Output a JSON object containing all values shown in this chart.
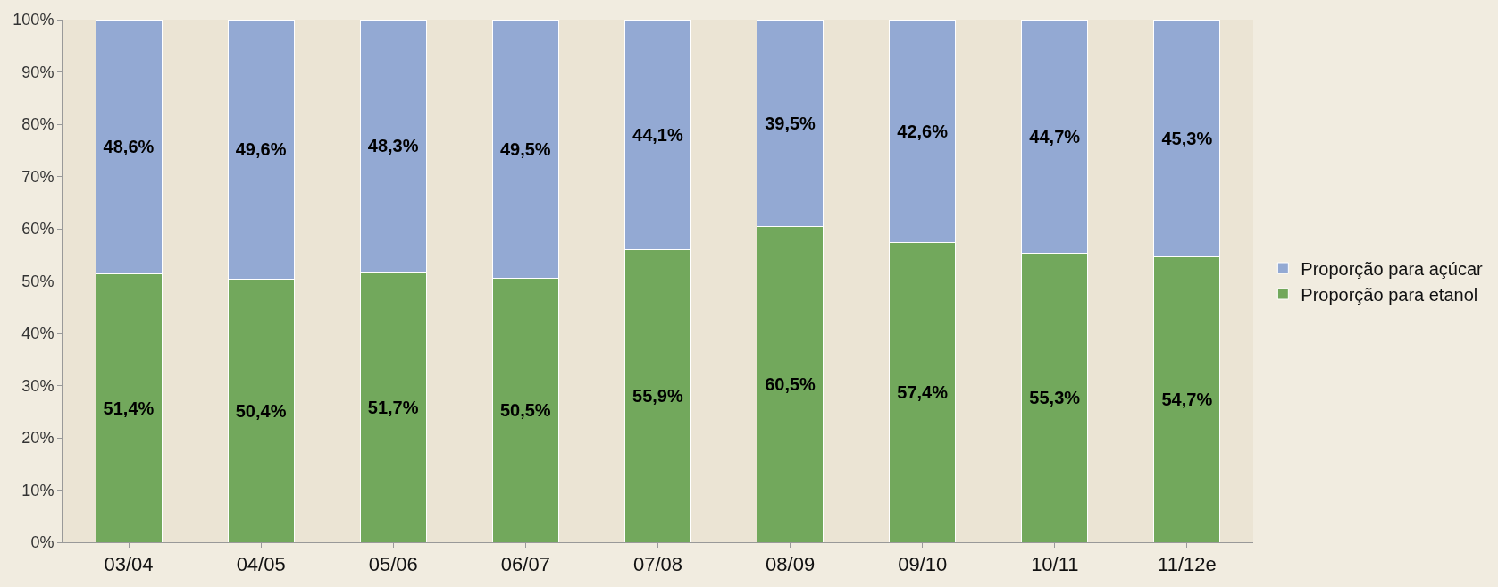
{
  "chart_data": {
    "type": "bar",
    "stacked": true,
    "categories": [
      "03/04",
      "04/05",
      "05/06",
      "06/07",
      "07/08",
      "08/09",
      "09/10",
      "10/11",
      "11/12e"
    ],
    "series": [
      {
        "name": "Proporção para etanol",
        "color": "#72a85c",
        "values": [
          51.4,
          50.4,
          51.7,
          50.5,
          55.9,
          60.5,
          57.4,
          55.3,
          54.7
        ],
        "value_labels": [
          "51,4%",
          "50,4%",
          "51,7%",
          "50,5%",
          "55,9%",
          "60,5%",
          "57,4%",
          "55,3%",
          "54,7%"
        ]
      },
      {
        "name": "Proporção para açúcar",
        "color": "#93a9d3",
        "values": [
          48.6,
          49.6,
          48.3,
          49.5,
          44.1,
          39.5,
          42.6,
          44.7,
          45.3
        ],
        "value_labels": [
          "48,6%",
          "49,6%",
          "48,3%",
          "49,5%",
          "44,1%",
          "39,5%",
          "42,6%",
          "44,7%",
          "45,3%"
        ]
      }
    ],
    "ylim": [
      0,
      100
    ],
    "yticks": [
      {
        "value": 0,
        "label": "0%"
      },
      {
        "value": 10,
        "label": "10%"
      },
      {
        "value": 20,
        "label": "20%"
      },
      {
        "value": 30,
        "label": "30%"
      },
      {
        "value": 40,
        "label": "40%"
      },
      {
        "value": 50,
        "label": "50%"
      },
      {
        "value": 60,
        "label": "60%"
      },
      {
        "value": 70,
        "label": "70%"
      },
      {
        "value": 80,
        "label": "80%"
      },
      {
        "value": 90,
        "label": "90%"
      },
      {
        "value": 100,
        "label": "100%"
      }
    ],
    "grid": false,
    "legend": "right"
  }
}
